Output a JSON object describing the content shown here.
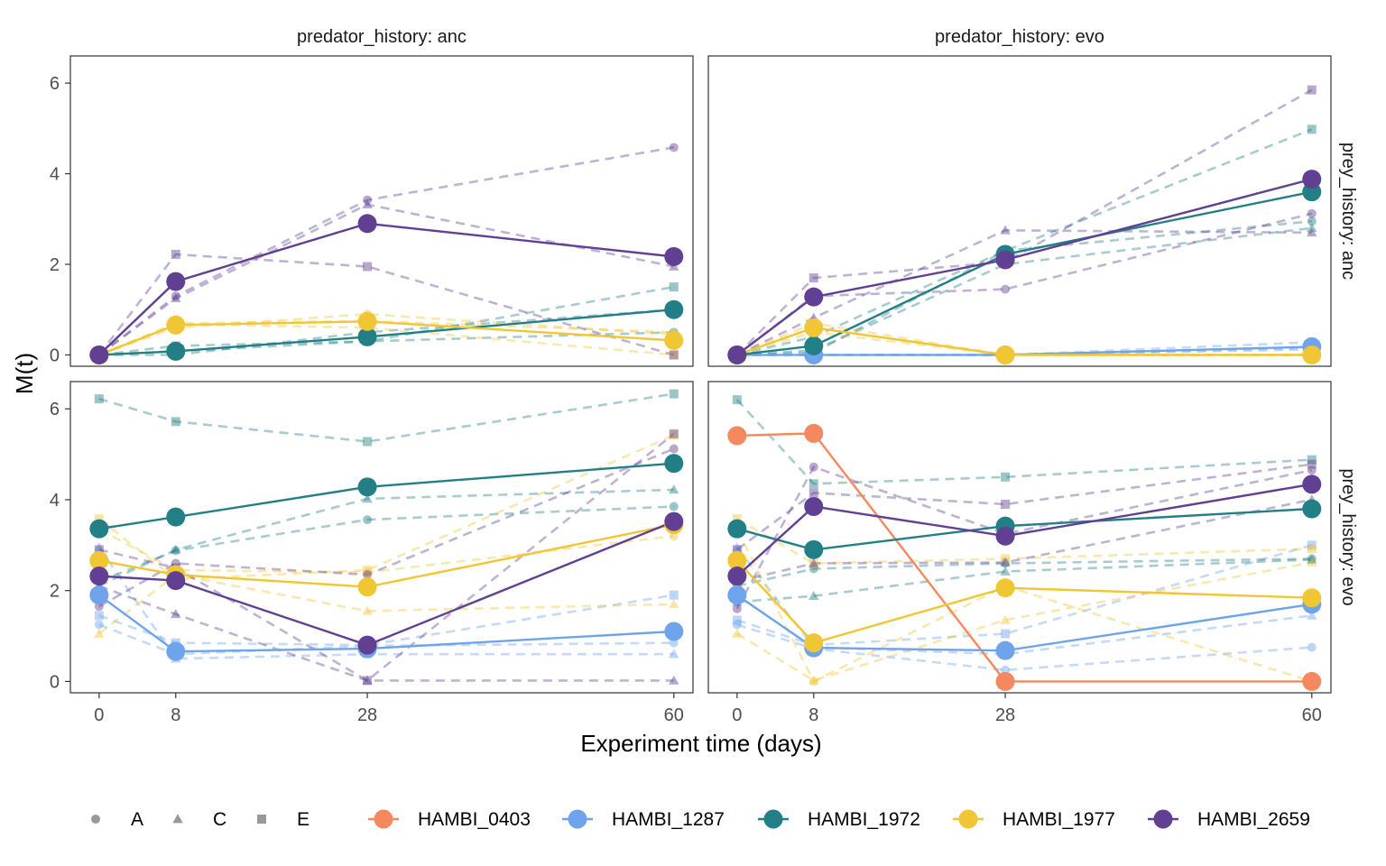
{
  "chart_data": {
    "type": "line",
    "xlabel": "Experiment time (days)",
    "ylabel": "M(t)",
    "x_ticks": [
      0,
      8,
      28,
      60
    ],
    "xlim": [
      -3,
      62
    ],
    "ylim": [
      -0.25,
      6.6
    ],
    "y_ticks": [
      0,
      2,
      4,
      6
    ],
    "grid": false,
    "legend_position": "bottom",
    "facet_col_labels": [
      "predator_history: anc",
      "predator_history: evo"
    ],
    "facet_row_labels": [
      "prey_history: anc",
      "prey_history: evo"
    ],
    "shape_legend": [
      {
        "label": "A",
        "shape": "circle"
      },
      {
        "label": "C",
        "shape": "triangle"
      },
      {
        "label": "E",
        "shape": "square"
      }
    ],
    "color_legend": [
      {
        "label": "HAMBI_0403",
        "color": "#F4895F"
      },
      {
        "label": "HAMBI_1287",
        "color": "#6FA3EB"
      },
      {
        "label": "HAMBI_1972",
        "color": "#237F86"
      },
      {
        "label": "HAMBI_1977",
        "color": "#F1C634"
      },
      {
        "label": "HAMBI_2659",
        "color": "#613F92"
      }
    ],
    "panels": [
      {
        "row": 0,
        "col": 0,
        "means": [
          {
            "name": "HAMBI_1972",
            "x": [
              0,
              8,
              28,
              60
            ],
            "y": [
              0,
              0.08,
              0.4,
              1.0
            ]
          },
          {
            "name": "HAMBI_1977",
            "x": [
              0,
              8,
              28,
              60
            ],
            "y": [
              0,
              0.66,
              0.74,
              0.32
            ]
          },
          {
            "name": "HAMBI_2659",
            "x": [
              0,
              8,
              28,
              60
            ],
            "y": [
              0,
              1.62,
              2.9,
              2.17
            ]
          }
        ],
        "replicates": [
          {
            "name": "HAMBI_1972",
            "shape": "A",
            "x": [
              0,
              8,
              28,
              60
            ],
            "y": [
              0,
              0.08,
              0.3,
              0.5
            ]
          },
          {
            "name": "HAMBI_1972",
            "shape": "C",
            "x": [
              0,
              8,
              28,
              60
            ],
            "y": [
              0,
              0.0,
              0.5,
              1.0
            ]
          },
          {
            "name": "HAMBI_1972",
            "shape": "E",
            "x": [
              0,
              8,
              28,
              60
            ],
            "y": [
              0,
              0.2,
              0.3,
              1.5
            ]
          },
          {
            "name": "HAMBI_1977",
            "shape": "A",
            "x": [
              0,
              8,
              28,
              60
            ],
            "y": [
              0,
              0.6,
              0.9,
              0.45
            ]
          },
          {
            "name": "HAMBI_1977",
            "shape": "C",
            "x": [
              0,
              8,
              28,
              60
            ],
            "y": [
              0,
              0.7,
              0.75,
              0.5
            ]
          },
          {
            "name": "HAMBI_1977",
            "shape": "E",
            "x": [
              0,
              8,
              28,
              60
            ],
            "y": [
              0,
              0.68,
              0.6,
              0.0
            ]
          },
          {
            "name": "HAMBI_2659",
            "shape": "A",
            "x": [
              0,
              8,
              28,
              60
            ],
            "y": [
              0,
              1.3,
              3.42,
              4.58
            ]
          },
          {
            "name": "HAMBI_2659",
            "shape": "C",
            "x": [
              0,
              8,
              28,
              60
            ],
            "y": [
              0,
              1.25,
              3.32,
              1.95
            ]
          },
          {
            "name": "HAMBI_2659",
            "shape": "E",
            "x": [
              0,
              8,
              28,
              60
            ],
            "y": [
              0,
              2.22,
              1.95,
              0.0
            ]
          }
        ]
      },
      {
        "row": 0,
        "col": 1,
        "means": [
          {
            "name": "HAMBI_1287",
            "x": [
              0,
              8,
              28,
              60
            ],
            "y": [
              0,
              0,
              0,
              0.18
            ]
          },
          {
            "name": "HAMBI_1972",
            "x": [
              0,
              8,
              28,
              60
            ],
            "y": [
              0,
              0.2,
              2.22,
              3.6
            ]
          },
          {
            "name": "HAMBI_1977",
            "x": [
              0,
              8,
              28,
              60
            ],
            "y": [
              0,
              0.6,
              0,
              0
            ]
          },
          {
            "name": "HAMBI_2659",
            "x": [
              0,
              8,
              28,
              60
            ],
            "y": [
              0,
              1.28,
              2.1,
              3.88
            ]
          }
        ],
        "replicates": [
          {
            "name": "HAMBI_1287",
            "shape": "A",
            "x": [
              0,
              8,
              28,
              60
            ],
            "y": [
              0,
              0,
              0,
              0.12
            ]
          },
          {
            "name": "HAMBI_1287",
            "shape": "C",
            "x": [
              0,
              8,
              28,
              60
            ],
            "y": [
              0,
              0,
              0,
              0.15
            ]
          },
          {
            "name": "HAMBI_1287",
            "shape": "E",
            "x": [
              0,
              8,
              28,
              60
            ],
            "y": [
              0,
              0,
              0,
              0.28
            ]
          },
          {
            "name": "HAMBI_1972",
            "shape": "A",
            "x": [
              0,
              8,
              28,
              60
            ],
            "y": [
              0,
              0.05,
              2.3,
              2.95
            ]
          },
          {
            "name": "HAMBI_1972",
            "shape": "C",
            "x": [
              0,
              8,
              28,
              60
            ],
            "y": [
              0,
              0.1,
              2.0,
              2.8
            ]
          },
          {
            "name": "HAMBI_1972",
            "shape": "E",
            "x": [
              0,
              8,
              28,
              60
            ],
            "y": [
              0,
              0.4,
              2.3,
              4.98
            ]
          },
          {
            "name": "HAMBI_1977",
            "shape": "A",
            "x": [
              0,
              8,
              28,
              60
            ],
            "y": [
              0,
              0.5,
              0,
              0
            ]
          },
          {
            "name": "HAMBI_1977",
            "shape": "C",
            "x": [
              0,
              8,
              28,
              60
            ],
            "y": [
              0,
              0.6,
              0,
              0
            ]
          },
          {
            "name": "HAMBI_1977",
            "shape": "E",
            "x": [
              0,
              8,
              28,
              60
            ],
            "y": [
              0,
              0.7,
              0,
              0
            ]
          },
          {
            "name": "HAMBI_2659",
            "shape": "A",
            "x": [
              0,
              8,
              28,
              60
            ],
            "y": [
              0,
              1.3,
              1.45,
              3.12
            ]
          },
          {
            "name": "HAMBI_2659",
            "shape": "C",
            "x": [
              0,
              8,
              28,
              60
            ],
            "y": [
              0,
              0.82,
              2.75,
              2.7
            ]
          },
          {
            "name": "HAMBI_2659",
            "shape": "E",
            "x": [
              0,
              8,
              28,
              60
            ],
            "y": [
              0,
              1.7,
              2.05,
              5.85
            ]
          }
        ]
      },
      {
        "row": 1,
        "col": 0,
        "means": [
          {
            "name": "HAMBI_1287",
            "x": [
              0,
              8,
              28,
              60
            ],
            "y": [
              1.9,
              0.66,
              0.72,
              1.1
            ]
          },
          {
            "name": "HAMBI_1972",
            "x": [
              0,
              8,
              28,
              60
            ],
            "y": [
              3.36,
              3.62,
              4.28,
              4.8
            ]
          },
          {
            "name": "HAMBI_1977",
            "x": [
              0,
              8,
              28,
              60
            ],
            "y": [
              2.66,
              2.35,
              2.08,
              3.45
            ]
          },
          {
            "name": "HAMBI_2659",
            "x": [
              0,
              8,
              28,
              60
            ],
            "y": [
              2.32,
              2.22,
              0.8,
              3.52
            ]
          }
        ],
        "replicates": [
          {
            "name": "HAMBI_1287",
            "shape": "A",
            "x": [
              0,
              8,
              28,
              60
            ],
            "y": [
              1.25,
              0.6,
              0.78,
              0.85
            ]
          },
          {
            "name": "HAMBI_1287",
            "shape": "C",
            "x": [
              0,
              8,
              28,
              60
            ],
            "y": [
              2.95,
              0.5,
              0.6,
              0.6
            ]
          },
          {
            "name": "HAMBI_1287",
            "shape": "E",
            "x": [
              0,
              8,
              28,
              60
            ],
            "y": [
              1.45,
              0.85,
              0.8,
              1.9
            ]
          },
          {
            "name": "HAMBI_1972",
            "shape": "A",
            "x": [
              0,
              8,
              28,
              60
            ],
            "y": [
              2.2,
              2.88,
              3.56,
              3.85
            ]
          },
          {
            "name": "HAMBI_1972",
            "shape": "C",
            "x": [
              0,
              8,
              28,
              60
            ],
            "y": [
              2.1,
              2.9,
              4.02,
              4.22
            ]
          },
          {
            "name": "HAMBI_1972",
            "shape": "E",
            "x": [
              0,
              8,
              28,
              60
            ],
            "y": [
              6.22,
              5.72,
              5.28,
              6.33
            ]
          },
          {
            "name": "HAMBI_1977",
            "shape": "A",
            "x": [
              0,
              8,
              28,
              60
            ],
            "y": [
              3.35,
              2.45,
              2.4,
              3.2
            ]
          },
          {
            "name": "HAMBI_1977",
            "shape": "C",
            "x": [
              0,
              8,
              28,
              60
            ],
            "y": [
              1.05,
              2.35,
              1.55,
              1.7
            ]
          },
          {
            "name": "HAMBI_1977",
            "shape": "E",
            "x": [
              0,
              8,
              28,
              60
            ],
            "y": [
              3.58,
              2.25,
              2.45,
              5.42
            ]
          },
          {
            "name": "HAMBI_2659",
            "shape": "A",
            "x": [
              0,
              8,
              28,
              60
            ],
            "y": [
              1.65,
              2.6,
              2.35,
              5.12
            ]
          },
          {
            "name": "HAMBI_2659",
            "shape": "C",
            "x": [
              0,
              8,
              28,
              60
            ],
            "y": [
              2.1,
              1.48,
              0.02,
              0.02
            ]
          },
          {
            "name": "HAMBI_2659",
            "shape": "E",
            "x": [
              0,
              8,
              28,
              60
            ],
            "y": [
              2.9,
              2.5,
              0.02,
              5.45
            ]
          }
        ]
      },
      {
        "row": 1,
        "col": 1,
        "means": [
          {
            "name": "HAMBI_0403",
            "x": [
              0,
              8,
              28,
              60
            ],
            "y": [
              5.41,
              5.46,
              0,
              0
            ]
          },
          {
            "name": "HAMBI_1287",
            "x": [
              0,
              8,
              28,
              60
            ],
            "y": [
              1.9,
              0.74,
              0.68,
              1.7
            ]
          },
          {
            "name": "HAMBI_1972",
            "x": [
              0,
              8,
              28,
              60
            ],
            "y": [
              3.36,
              2.9,
              3.42,
              3.8
            ]
          },
          {
            "name": "HAMBI_1977",
            "x": [
              0,
              8,
              28,
              60
            ],
            "y": [
              2.66,
              0.85,
              2.06,
              1.84
            ]
          },
          {
            "name": "HAMBI_2659",
            "x": [
              0,
              8,
              28,
              60
            ],
            "y": [
              2.32,
              3.85,
              3.2,
              4.34
            ]
          }
        ],
        "replicates": [
          {
            "name": "HAMBI_1287",
            "shape": "A",
            "x": [
              0,
              8,
              28,
              60
            ],
            "y": [
              1.25,
              0.72,
              0.25,
              0.75
            ]
          },
          {
            "name": "HAMBI_1287",
            "shape": "C",
            "x": [
              0,
              8,
              28,
              60
            ],
            "y": [
              2.95,
              0.75,
              0.6,
              1.45
            ]
          },
          {
            "name": "HAMBI_1287",
            "shape": "E",
            "x": [
              0,
              8,
              28,
              60
            ],
            "y": [
              1.35,
              0.8,
              1.05,
              3.0
            ]
          },
          {
            "name": "HAMBI_1972",
            "shape": "A",
            "x": [
              0,
              8,
              28,
              60
            ],
            "y": [
              2.1,
              2.48,
              2.6,
              2.7
            ]
          },
          {
            "name": "HAMBI_1972",
            "shape": "C",
            "x": [
              0,
              8,
              28,
              60
            ],
            "y": [
              1.75,
              1.88,
              2.42,
              2.68
            ]
          },
          {
            "name": "HAMBI_1972",
            "shape": "E",
            "x": [
              0,
              8,
              28,
              60
            ],
            "y": [
              6.2,
              4.35,
              4.5,
              4.88
            ]
          },
          {
            "name": "HAMBI_1977",
            "shape": "A",
            "x": [
              0,
              8,
              28,
              60
            ],
            "y": [
              3.35,
              0.0,
              2.1,
              0.0
            ]
          },
          {
            "name": "HAMBI_1977",
            "shape": "C",
            "x": [
              0,
              8,
              28,
              60
            ],
            "y": [
              1.05,
              0.02,
              1.35,
              2.62
            ]
          },
          {
            "name": "HAMBI_1977",
            "shape": "E",
            "x": [
              0,
              8,
              28,
              60
            ],
            "y": [
              3.58,
              2.6,
              2.7,
              2.92
            ]
          },
          {
            "name": "HAMBI_2659",
            "shape": "A",
            "x": [
              0,
              8,
              28,
              60
            ],
            "y": [
              1.6,
              4.72,
              3.25,
              4.65
            ]
          },
          {
            "name": "HAMBI_2659",
            "shape": "C",
            "x": [
              0,
              8,
              28,
              60
            ],
            "y": [
              2.2,
              2.6,
              2.62,
              4.0
            ]
          },
          {
            "name": "HAMBI_2659",
            "shape": "E",
            "x": [
              0,
              8,
              28,
              60
            ],
            "y": [
              2.9,
              4.15,
              3.9,
              4.78
            ]
          }
        ]
      }
    ]
  }
}
